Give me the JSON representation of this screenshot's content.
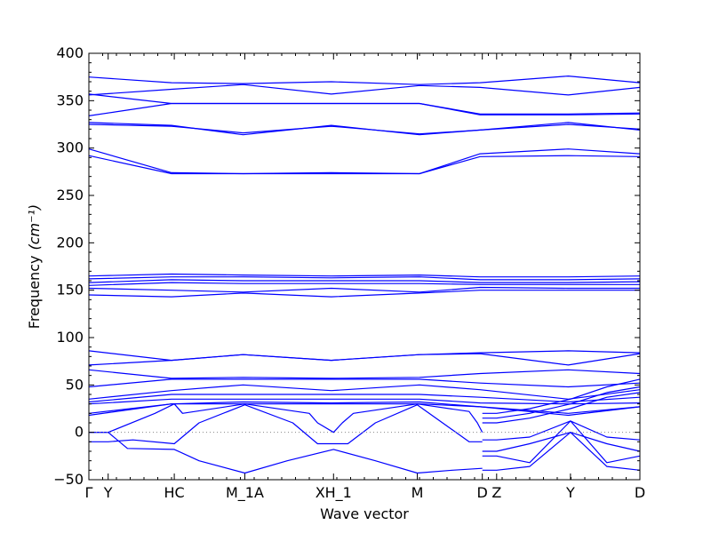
{
  "chart_data": {
    "type": "line",
    "title": "",
    "xlabel": "Wave vector",
    "ylabel": "Frequency",
    "ylabel_unit": "(cm⁻¹)",
    "ylim": [
      -50,
      400
    ],
    "yticks": [
      -50,
      0,
      50,
      100,
      150,
      200,
      250,
      300,
      350,
      400
    ],
    "x_range": [
      0,
      1
    ],
    "grid": false,
    "legend": "none",
    "line_color": "#0000ff",
    "zero_line_color": "#888888",
    "high_symmetry_points": [
      {
        "label": "Γ",
        "x": 0.0
      },
      {
        "label": "Y",
        "x": 0.035
      },
      {
        "label": "HC",
        "x": 0.155
      },
      {
        "label": "M_1A",
        "x": 0.283
      },
      {
        "label": "XH_1",
        "x": 0.444
      },
      {
        "label": "M",
        "x": 0.596
      },
      {
        "label": "D",
        "x": 0.714
      },
      {
        "label": "Z",
        "x": 0.74
      },
      {
        "label": "Y",
        "x": 0.874
      },
      {
        "label": "D",
        "x": 1.0
      }
    ],
    "branches": [
      {
        "x": [
          0,
          0.15,
          0.28,
          0.44,
          0.6,
          0.71,
          0.87,
          1.0
        ],
        "y": [
          375,
          369,
          368,
          370,
          367,
          369,
          376,
          369
        ]
      },
      {
        "x": [
          0,
          0.15,
          0.28,
          0.44,
          0.6,
          0.71,
          0.87,
          1.0
        ],
        "y": [
          356,
          362,
          367,
          357,
          366,
          364,
          356,
          364
        ]
      },
      {
        "x": [
          0,
          0.15,
          0.28,
          0.44,
          0.6,
          0.71,
          0.87,
          1.0
        ],
        "y": [
          357,
          347,
          347,
          347,
          347,
          335,
          335,
          336
        ]
      },
      {
        "x": [
          0,
          0.15,
          0.28,
          0.44,
          0.6,
          0.71,
          0.87,
          1.0
        ],
        "y": [
          334,
          347,
          347,
          347,
          347,
          336,
          336,
          337
        ]
      },
      {
        "x": [
          0,
          0.15,
          0.28,
          0.44,
          0.6,
          0.71,
          0.87,
          1.0
        ],
        "y": [
          327,
          324,
          314,
          324,
          314,
          319,
          327,
          319
        ]
      },
      {
        "x": [
          0,
          0.15,
          0.28,
          0.44,
          0.6,
          0.71,
          0.87,
          1.0
        ],
        "y": [
          325,
          323,
          316,
          323,
          315,
          319,
          325,
          320
        ]
      },
      {
        "x": [
          0,
          0.15,
          0.28,
          0.44,
          0.6,
          0.71,
          0.87,
          1.0
        ],
        "y": [
          299,
          274,
          273,
          274,
          273,
          294,
          299,
          294
        ]
      },
      {
        "x": [
          0,
          0.15,
          0.28,
          0.44,
          0.6,
          0.71,
          0.87,
          1.0
        ],
        "y": [
          292,
          273,
          273,
          273,
          273,
          291,
          292,
          291
        ]
      },
      {
        "x": [
          0,
          0.15,
          0.28,
          0.44,
          0.6,
          0.71,
          0.87,
          1.0
        ],
        "y": [
          165,
          167,
          166,
          165,
          166,
          164,
          164,
          165
        ]
      },
      {
        "x": [
          0,
          0.15,
          0.28,
          0.44,
          0.6,
          0.71,
          0.87,
          1.0
        ],
        "y": [
          162,
          164,
          164,
          163,
          164,
          161,
          161,
          162
        ]
      },
      {
        "x": [
          0,
          0.15,
          0.28,
          0.44,
          0.6,
          0.71,
          0.87,
          1.0
        ],
        "y": [
          158,
          161,
          160,
          160,
          160,
          158,
          158,
          159
        ]
      },
      {
        "x": [
          0,
          0.15,
          0.28,
          0.44,
          0.6,
          0.71,
          0.87,
          1.0
        ],
        "y": [
          155,
          158,
          157,
          157,
          157,
          156,
          156,
          156
        ]
      },
      {
        "x": [
          0,
          0.15,
          0.28,
          0.44,
          0.6,
          0.71,
          0.87,
          1.0
        ],
        "y": [
          152,
          150,
          148,
          152,
          148,
          153,
          152,
          152
        ]
      },
      {
        "x": [
          0,
          0.15,
          0.28,
          0.44,
          0.6,
          0.71,
          0.87,
          1.0
        ],
        "y": [
          145,
          143,
          147,
          143,
          147,
          150,
          150,
          150
        ]
      },
      {
        "x": [
          0,
          0.15,
          0.28,
          0.44,
          0.6,
          0.71,
          0.87,
          1.0
        ],
        "y": [
          86,
          76,
          82,
          76,
          82,
          84,
          86,
          84
        ]
      },
      {
        "x": [
          0,
          0.15,
          0.28,
          0.44,
          0.6,
          0.71,
          0.87,
          1.0
        ],
        "y": [
          71,
          76,
          82,
          76,
          82,
          83,
          71,
          83
        ]
      },
      {
        "x": [
          0,
          0.15,
          0.28,
          0.44,
          0.6,
          0.71,
          0.87,
          1.0
        ],
        "y": [
          66,
          57,
          58,
          57,
          58,
          62,
          66,
          62
        ]
      },
      {
        "x": [
          0,
          0.15,
          0.28,
          0.44,
          0.6,
          0.71,
          0.87,
          1.0
        ],
        "y": [
          48,
          56,
          56,
          56,
          56,
          52,
          48,
          52
        ]
      },
      {
        "x": [
          0,
          0.15,
          0.28,
          0.44,
          0.6,
          0.71,
          0.87,
          1.0
        ],
        "y": [
          35,
          44,
          50,
          44,
          50,
          45,
          35,
          45
        ]
      },
      {
        "x": [
          0,
          0.15,
          0.28,
          0.44,
          0.6,
          0.71,
          0.87,
          1.0
        ],
        "y": [
          32,
          40,
          40,
          40,
          40,
          37,
          32,
          37
        ]
      },
      {
        "x": [
          0,
          0.15,
          0.28,
          0.44,
          0.6,
          0.71,
          0.87,
          1.0
        ],
        "y": [
          30,
          35,
          35,
          35,
          35,
          31,
          30,
          31
        ]
      },
      {
        "x": [
          0,
          0.15,
          0.28,
          0.44,
          0.6,
          0.71,
          0.87,
          1.0
        ],
        "y": [
          20,
          30,
          32,
          31,
          32,
          27,
          20,
          27
        ]
      },
      {
        "x": [
          0,
          0.15,
          0.28,
          0.44,
          0.6,
          0.71,
          0.87,
          1.0
        ],
        "y": [
          18,
          30,
          30,
          30,
          30,
          27,
          18,
          27
        ]
      },
      {
        "x": [
          0,
          0.035,
          0.07,
          0.155,
          0.2,
          0.283,
          0.36,
          0.444,
          0.52,
          0.596,
          0.66,
          0.714
        ],
        "y": [
          0,
          0,
          -17,
          -18,
          -30,
          -43,
          -30,
          -18,
          -30,
          -43,
          -40,
          -38
        ]
      },
      {
        "x": [
          0,
          0.035,
          0.12,
          0.155,
          0.17,
          0.283,
          0.4,
          0.415,
          0.444,
          0.46,
          0.48,
          0.596,
          0.69,
          0.705,
          0.714
        ],
        "y": [
          0,
          0,
          20,
          30,
          20,
          30,
          20,
          10,
          0,
          10,
          20,
          30,
          22,
          10,
          0
        ]
      },
      {
        "x": [
          0,
          0.035,
          0.08,
          0.155,
          0.2,
          0.283,
          0.37,
          0.415,
          0.444,
          0.47,
          0.52,
          0.596,
          0.69,
          0.714
        ],
        "y": [
          -10,
          -10,
          -8,
          -12,
          10,
          29,
          10,
          -12,
          -12,
          -12,
          10,
          29,
          -10,
          -10
        ]
      },
      {
        "x": [
          0.714,
          0.74,
          0.8,
          0.874,
          0.94,
          1.0
        ],
        "y": [
          -20,
          -20,
          -12,
          0,
          -12,
          -20
        ]
      },
      {
        "x": [
          0.714,
          0.74,
          0.8,
          0.874,
          0.94,
          1.0
        ],
        "y": [
          -40,
          -40,
          -36,
          0,
          -36,
          -40
        ]
      },
      {
        "x": [
          0.714,
          0.74,
          0.8,
          0.874,
          0.94,
          1.0
        ],
        "y": [
          -8,
          -8,
          -5,
          12,
          -5,
          -8
        ]
      },
      {
        "x": [
          0.714,
          0.74,
          0.8,
          0.874,
          0.94,
          1.0
        ],
        "y": [
          -25,
          -25,
          -32,
          12,
          -32,
          -25
        ]
      },
      {
        "x": [
          0.714,
          0.74,
          0.8,
          0.874,
          0.94,
          1.0
        ],
        "y": [
          20,
          20,
          25,
          35,
          48,
          56
        ]
      },
      {
        "x": [
          0.714,
          0.74,
          0.8,
          0.874,
          0.94,
          1.0
        ],
        "y": [
          15,
          15,
          20,
          30,
          42,
          48
        ]
      },
      {
        "x": [
          0.714,
          0.74,
          0.8,
          0.874,
          0.94,
          1.0
        ],
        "y": [
          10,
          10,
          15,
          25,
          37,
          42
        ]
      }
    ]
  }
}
